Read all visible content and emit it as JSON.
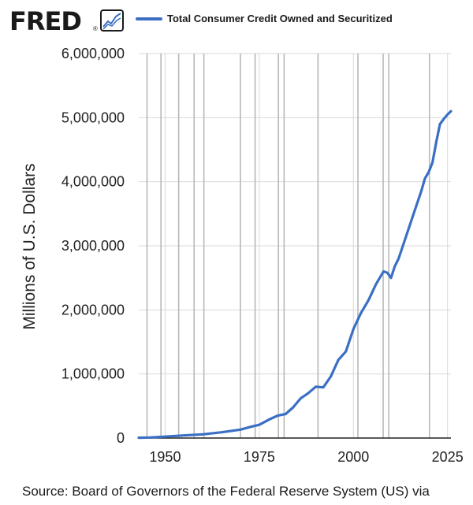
{
  "header": {
    "logo_text": "FRED",
    "logo_mark": "®",
    "logo_icon": "line-chart-icon"
  },
  "legend": {
    "label": "Total Consumer Credit Owned and Securitized",
    "color": "#3a6fc4"
  },
  "source": "Source: Board of Governors of the Federal Reserve System (US) via",
  "chart_data": {
    "type": "line",
    "title": "",
    "xlabel": "",
    "ylabel": "Millions of U.S. Dollars",
    "xlim": [
      1943.0,
      2025.9
    ],
    "ylim": [
      0,
      6000000
    ],
    "x_ticks": [
      1950,
      1975,
      2000,
      2025
    ],
    "y_ticks": [
      0,
      1000000,
      2000000,
      3000000,
      4000000,
      5000000,
      6000000
    ],
    "y_tick_labels": [
      "0",
      "1,000,000",
      "2,000,000",
      "3,000,000",
      "4,000,000",
      "5,000,000",
      "6,000,000"
    ],
    "grid": true,
    "recession_lines": [
      1945.2,
      1948.9,
      1953.6,
      1957.7,
      1960.3,
      1970.0,
      1973.9,
      1980.1,
      1981.6,
      1990.6,
      2001.2,
      2007.9,
      2009.4,
      2020.2
    ],
    "series": [
      {
        "name": "Total Consumer Credit Owned and Securitized",
        "color": "#3a6fc4",
        "x": [
          1943.0,
          1946,
          1950,
          1955,
          1960,
          1965,
          1970,
          1973,
          1975,
          1978,
          1980,
          1982,
          1984,
          1986,
          1988,
          1990,
          1992,
          1994,
          1996,
          1998,
          2000,
          2002,
          2004,
          2006,
          2008,
          2009,
          2010,
          2011,
          2012,
          2014,
          2016,
          2018,
          2019,
          2020,
          2021,
          2022,
          2023,
          2024,
          2025,
          2025.9
        ],
        "y": [
          5000,
          8000,
          22000,
          40000,
          58000,
          90000,
          132000,
          180000,
          206000,
          300000,
          352000,
          375000,
          480000,
          620000,
          700000,
          800000,
          790000,
          960000,
          1220000,
          1350000,
          1700000,
          1950000,
          2150000,
          2400000,
          2600000,
          2580000,
          2500000,
          2680000,
          2800000,
          3150000,
          3500000,
          3850000,
          4050000,
          4150000,
          4300000,
          4620000,
          4900000,
          4980000,
          5050000,
          5100000
        ]
      }
    ]
  }
}
